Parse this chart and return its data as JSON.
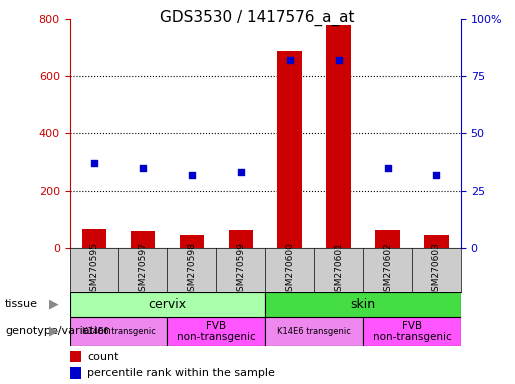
{
  "title": "GDS3530 / 1417576_a_at",
  "samples": [
    "GSM270595",
    "GSM270597",
    "GSM270598",
    "GSM270599",
    "GSM270600",
    "GSM270601",
    "GSM270602",
    "GSM270603"
  ],
  "counts": [
    65,
    60,
    45,
    62,
    690,
    780,
    62,
    45
  ],
  "percentiles": [
    37,
    35,
    32,
    33,
    82,
    82,
    35,
    32
  ],
  "ylim_left": [
    0,
    800
  ],
  "ylim_right": [
    0,
    100
  ],
  "yticks_left": [
    0,
    200,
    400,
    600,
    800
  ],
  "yticks_right": [
    0,
    25,
    50,
    75,
    100
  ],
  "yticklabels_right": [
    "0",
    "25",
    "50",
    "75",
    "100%"
  ],
  "bar_color": "#cc0000",
  "dot_color": "#0000cc",
  "grid_color": "#000000",
  "cervix_color": "#aaffaa",
  "skin_color": "#44dd44",
  "k14e6_color": "#ee88ee",
  "fvb_color": "#ff55ff",
  "xlabels_bg": "#cccccc",
  "tissue_label": "tissue",
  "genotype_label": "genotype/variation",
  "k14e6_label": "K14E6 transgenic",
  "fvb_label": "FVB\nnon-transgenic",
  "legend_count": "count",
  "legend_percentile": "percentile rank within the sample",
  "background_color": "#ffffff",
  "tick_color_left": "#cc0000",
  "tick_color_right": "#0000cc",
  "title_fontsize": 11,
  "bar_width": 0.5
}
